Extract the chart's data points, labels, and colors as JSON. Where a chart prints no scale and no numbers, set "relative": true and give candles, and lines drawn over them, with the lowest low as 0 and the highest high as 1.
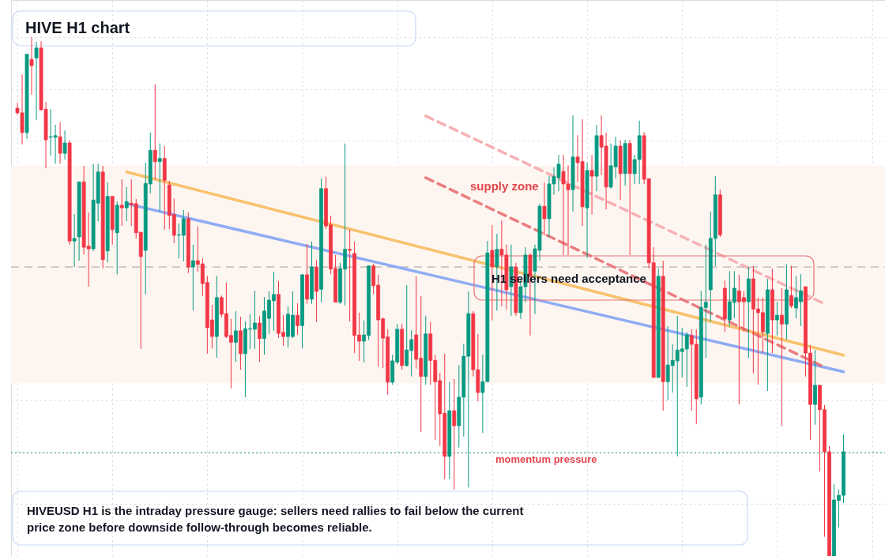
{
  "chart_data": {
    "type": "candlestick",
    "title": "HIVE H1 chart",
    "relative": true,
    "grid": true,
    "categories": [
      null,
      null,
      null,
      null,
      null,
      null,
      null,
      null,
      null,
      null,
      null,
      null,
      null,
      null,
      null,
      null,
      null,
      null,
      null,
      null,
      null,
      null,
      null,
      null,
      null,
      null,
      null,
      null,
      null,
      null,
      null,
      null,
      null,
      null,
      null,
      null,
      null,
      null,
      null,
      null,
      null,
      null,
      null,
      null,
      null,
      null,
      null,
      null,
      null,
      null,
      null,
      null,
      null,
      null,
      null,
      null,
      null,
      null,
      null,
      null,
      null,
      null,
      null,
      null,
      null,
      null,
      null,
      null,
      null,
      null,
      null,
      null,
      null,
      null,
      null,
      null,
      null,
      null,
      null,
      null,
      null,
      null,
      null,
      null,
      null,
      null,
      null,
      null,
      null,
      null,
      null,
      null,
      null,
      null,
      null,
      null,
      null,
      null,
      null,
      null,
      null,
      null,
      null,
      null,
      null,
      null,
      null,
      null,
      null,
      null,
      null,
      null,
      null,
      null,
      null,
      null,
      null,
      null,
      null,
      null,
      null,
      null,
      null,
      null,
      null,
      null,
      null,
      null,
      null,
      null,
      null,
      null,
      null,
      null,
      null,
      null,
      null,
      null,
      null,
      null,
      null,
      null,
      null,
      null,
      null,
      null,
      null,
      null,
      null,
      null,
      null,
      null,
      null,
      null,
      null,
      null,
      null,
      null,
      null,
      null,
      null,
      null,
      null,
      null,
      null,
      null,
      null,
      null,
      null,
      null,
      null,
      null,
      null,
      null,
      null
    ],
    "ohlc": [
      [
        0.863,
        0.874,
        0.851,
        0.854
      ],
      [
        0.854,
        0.928,
        0.793,
        0.816
      ],
      [
        0.816,
        0.967,
        0.804,
        0.967
      ],
      [
        0.957,
        1.0,
        0.889,
        0.945
      ],
      [
        0.96,
        0.991,
        0.84,
        0.979
      ],
      [
        0.979,
        0.992,
        0.858,
        0.86
      ],
      [
        0.861,
        0.875,
        0.747,
        0.802
      ],
      [
        0.807,
        0.861,
        0.772,
        0.808
      ],
      [
        0.807,
        0.831,
        0.756,
        0.81
      ],
      [
        0.808,
        0.836,
        0.756,
        0.776
      ],
      [
        0.776,
        0.82,
        0.764,
        0.796
      ],
      [
        0.796,
        0.801,
        0.6,
        0.607
      ],
      [
        0.607,
        0.659,
        0.557,
        0.612
      ],
      [
        0.615,
        0.721,
        0.569,
        0.721
      ],
      [
        0.721,
        0.752,
        0.581,
        0.595
      ],
      [
        0.597,
        0.662,
        0.519,
        0.592
      ],
      [
        0.592,
        0.756,
        0.588,
        0.686
      ],
      [
        0.68,
        0.756,
        0.645,
        0.74
      ],
      [
        0.74,
        0.752,
        0.554,
        0.571
      ],
      [
        0.588,
        0.72,
        0.566,
        0.693
      ],
      [
        0.693,
        0.693,
        0.6,
        0.629
      ],
      [
        0.623,
        0.683,
        0.543,
        0.676
      ],
      [
        0.676,
        0.726,
        0.636,
        0.671
      ],
      [
        0.671,
        0.711,
        0.645,
        0.683
      ],
      [
        0.68,
        0.726,
        0.636,
        0.677
      ],
      [
        0.679,
        0.688,
        0.612,
        0.623
      ],
      [
        0.624,
        0.624,
        0.399,
        0.577
      ],
      [
        0.589,
        0.758,
        0.504,
        0.718
      ],
      [
        0.717,
        0.816,
        0.699,
        0.782
      ],
      [
        0.782,
        0.909,
        0.726,
        0.76
      ],
      [
        0.76,
        0.795,
        0.664,
        0.766
      ],
      [
        0.766,
        0.79,
        0.629,
        0.724
      ],
      [
        0.715,
        0.723,
        0.63,
        0.656
      ],
      [
        0.658,
        0.689,
        0.603,
        0.618
      ],
      [
        0.618,
        0.641,
        0.574,
        0.619
      ],
      [
        0.618,
        0.667,
        0.568,
        0.65
      ],
      [
        0.65,
        0.662,
        0.545,
        0.557
      ],
      [
        0.557,
        0.6,
        0.473,
        0.569
      ],
      [
        0.569,
        0.635,
        0.548,
        0.562
      ],
      [
        0.563,
        0.574,
        0.501,
        0.525
      ],
      [
        0.527,
        0.54,
        0.39,
        0.44
      ],
      [
        0.455,
        0.484,
        0.4,
        0.423
      ],
      [
        0.423,
        0.54,
        0.382,
        0.498
      ],
      [
        0.498,
        0.502,
        0.46,
        0.466
      ],
      [
        0.467,
        0.527,
        0.42,
        0.423
      ],
      [
        0.425,
        0.457,
        0.323,
        0.412
      ],
      [
        0.412,
        0.472,
        0.374,
        0.434
      ],
      [
        0.434,
        0.461,
        0.359,
        0.39
      ],
      [
        0.39,
        0.452,
        0.306,
        0.438
      ],
      [
        0.437,
        0.466,
        0.399,
        0.438
      ],
      [
        0.437,
        0.511,
        0.399,
        0.449
      ],
      [
        0.449,
        0.463,
        0.374,
        0.419
      ],
      [
        0.419,
        0.499,
        0.388,
        0.472
      ],
      [
        0.458,
        0.51,
        0.428,
        0.493
      ],
      [
        0.492,
        0.548,
        0.434,
        0.504
      ],
      [
        0.504,
        0.53,
        0.42,
        0.429
      ],
      [
        0.431,
        0.464,
        0.405,
        0.423
      ],
      [
        0.423,
        0.481,
        0.402,
        0.466
      ],
      [
        0.423,
        0.51,
        0.42,
        0.464
      ],
      [
        0.464,
        0.487,
        0.426,
        0.444
      ],
      [
        0.444,
        0.543,
        0.4,
        0.542
      ],
      [
        0.542,
        0.601,
        0.486,
        0.495
      ],
      [
        0.495,
        0.606,
        0.486,
        0.557
      ],
      [
        0.557,
        0.571,
        0.451,
        0.51
      ],
      [
        0.514,
        0.728,
        0.489,
        0.708
      ],
      [
        0.708,
        0.731,
        0.63,
        0.636
      ],
      [
        0.638,
        0.656,
        0.543,
        0.553
      ],
      [
        0.554,
        0.58,
        0.489,
        0.489
      ],
      [
        0.489,
        0.565,
        0.486,
        0.554
      ],
      [
        0.553,
        0.795,
        0.483,
        0.591
      ],
      [
        0.591,
        0.629,
        0.452,
        0.589
      ],
      [
        0.583,
        0.606,
        0.391,
        0.425
      ],
      [
        0.426,
        0.469,
        0.376,
        0.414
      ],
      [
        0.414,
        0.454,
        0.373,
        0.426
      ],
      [
        0.425,
        0.56,
        0.416,
        0.559
      ],
      [
        0.559,
        0.563,
        0.505,
        0.521
      ],
      [
        0.522,
        0.542,
        0.365,
        0.455
      ],
      [
        0.457,
        0.46,
        0.362,
        0.42
      ],
      [
        0.422,
        0.437,
        0.311,
        0.335
      ],
      [
        0.335,
        0.388,
        0.33,
        0.376
      ],
      [
        0.374,
        0.447,
        0.37,
        0.437
      ],
      [
        0.437,
        0.447,
        0.359,
        0.367
      ],
      [
        0.367,
        0.522,
        0.365,
        0.397
      ],
      [
        0.396,
        0.435,
        0.346,
        0.417
      ],
      [
        0.426,
        0.539,
        0.361,
        0.379
      ],
      [
        0.381,
        0.501,
        0.239,
        0.346
      ],
      [
        0.346,
        0.463,
        0.33,
        0.428
      ],
      [
        0.428,
        0.451,
        0.33,
        0.377
      ],
      [
        0.377,
        0.388,
        0.224,
        0.336
      ],
      [
        0.338,
        0.353,
        0.212,
        0.274
      ],
      [
        0.275,
        0.39,
        0.148,
        0.192
      ],
      [
        0.192,
        0.335,
        0.148,
        0.28
      ],
      [
        0.28,
        0.341,
        0.128,
        0.251
      ],
      [
        0.251,
        0.368,
        0.209,
        0.306
      ],
      [
        0.306,
        0.409,
        0.23,
        0.385
      ],
      [
        0.385,
        0.51,
        0.132,
        0.467
      ],
      [
        0.467,
        0.472,
        0.346,
        0.359
      ],
      [
        0.359,
        0.428,
        0.298,
        0.315
      ],
      [
        0.315,
        0.388,
        0.237,
        0.336
      ],
      [
        0.336,
        0.607,
        0.336,
        0.584
      ],
      [
        0.589,
        0.638,
        0.454,
        0.557
      ],
      [
        0.557,
        0.621,
        0.473,
        0.591
      ],
      [
        0.591,
        0.647,
        0.481,
        0.58
      ],
      [
        0.58,
        0.6,
        0.475,
        0.513
      ],
      [
        0.519,
        0.6,
        0.463,
        0.557
      ],
      [
        0.557,
        0.565,
        0.463,
        0.469
      ],
      [
        0.469,
        0.534,
        0.457,
        0.519
      ],
      [
        0.519,
        0.595,
        0.489,
        0.58
      ],
      [
        0.58,
        0.584,
        0.425,
        0.539
      ],
      [
        0.549,
        0.6,
        0.466,
        0.592
      ],
      [
        0.589,
        0.679,
        0.569,
        0.674
      ],
      [
        0.674,
        0.72,
        0.618,
        0.65
      ],
      [
        0.65,
        0.732,
        0.615,
        0.717
      ],
      [
        0.717,
        0.749,
        0.696,
        0.731
      ],
      [
        0.729,
        0.773,
        0.703,
        0.755
      ],
      [
        0.741,
        0.773,
        0.58,
        0.717
      ],
      [
        0.717,
        0.753,
        0.58,
        0.706
      ],
      [
        0.706,
        0.849,
        0.664,
        0.769
      ],
      [
        0.769,
        0.811,
        0.721,
        0.758
      ],
      [
        0.76,
        0.842,
        0.636,
        0.673
      ],
      [
        0.671,
        0.758,
        0.574,
        0.743
      ],
      [
        0.743,
        0.773,
        0.658,
        0.732
      ],
      [
        0.732,
        0.831,
        0.703,
        0.81
      ],
      [
        0.81,
        0.849,
        0.734,
        0.788
      ],
      [
        0.79,
        0.816,
        0.668,
        0.711
      ],
      [
        0.711,
        0.795,
        0.708,
        0.752
      ],
      [
        0.75,
        0.808,
        0.728,
        0.79
      ],
      [
        0.79,
        0.801,
        0.686,
        0.737
      ],
      [
        0.737,
        0.802,
        0.714,
        0.795
      ],
      [
        0.795,
        0.802,
        0.58,
        0.737
      ],
      [
        0.737,
        0.773,
        0.717,
        0.764
      ],
      [
        0.764,
        0.839,
        0.717,
        0.81
      ],
      [
        0.81,
        0.817,
        0.717,
        0.726
      ],
      [
        0.727,
        0.727,
        0.554,
        0.565
      ],
      [
        0.565,
        0.595,
        0.344,
        0.344
      ],
      [
        0.344,
        0.554,
        0.344,
        0.539
      ],
      [
        0.539,
        0.569,
        0.28,
        0.336
      ],
      [
        0.336,
        0.443,
        0.3,
        0.368
      ],
      [
        0.367,
        0.408,
        0.315,
        0.377
      ],
      [
        0.376,
        0.463,
        0.192,
        0.397
      ],
      [
        0.394,
        0.44,
        0.344,
        0.399
      ],
      [
        0.399,
        0.431,
        0.326,
        0.426
      ],
      [
        0.425,
        0.437,
        0.28,
        0.408
      ],
      [
        0.408,
        0.437,
        0.254,
        0.303
      ],
      [
        0.306,
        0.511,
        0.292,
        0.479
      ],
      [
        0.479,
        0.6,
        0.382,
        0.489
      ],
      [
        0.513,
        0.664,
        0.452,
        0.612
      ],
      [
        0.612,
        0.732,
        0.559,
        0.696
      ],
      [
        0.696,
        0.706,
        0.615,
        0.619
      ],
      [
        0.516,
        0.531,
        0.432,
        0.457
      ],
      [
        0.455,
        0.549,
        0.443,
        0.49
      ],
      [
        0.489,
        0.549,
        0.458,
        0.516
      ],
      [
        0.511,
        0.542,
        0.292,
        0.49
      ],
      [
        0.498,
        0.511,
        0.432,
        0.49
      ],
      [
        0.49,
        0.557,
        0.382,
        0.534
      ],
      [
        0.534,
        0.559,
        0.352,
        0.476
      ],
      [
        0.476,
        0.498,
        0.33,
        0.469
      ],
      [
        0.469,
        0.498,
        0.391,
        0.432
      ],
      [
        0.429,
        0.534,
        0.318,
        0.513
      ],
      [
        0.513,
        0.554,
        0.391,
        0.455
      ],
      [
        0.455,
        0.49,
        0.425,
        0.464
      ],
      [
        0.464,
        0.516,
        0.25,
        0.447
      ],
      [
        0.447,
        0.562,
        0.417,
        0.513
      ],
      [
        0.502,
        0.559,
        0.478,
        0.482
      ],
      [
        0.478,
        0.539,
        0.458,
        0.498
      ],
      [
        0.49,
        0.543,
        0.443,
        0.511
      ],
      [
        0.519,
        0.519,
        0.346,
        0.391
      ],
      [
        0.391,
        0.406,
        0.224,
        0.292
      ],
      [
        0.292,
        0.397,
        0.253,
        0.329
      ],
      [
        0.329,
        0.33,
        0.163,
        0.282
      ],
      [
        0.282,
        0.291,
        0.037,
        0.201
      ],
      [
        0.201,
        0.212,
        0.0,
        0.0
      ],
      [
        0.0,
        0.139,
        0.0,
        0.108
      ],
      [
        0.107,
        0.128,
        0.055,
        0.117
      ],
      [
        0.117,
        0.234,
        0.102,
        0.201
      ]
    ],
    "series": [
      {
        "type": "line",
        "color": "#f7b955",
        "line_style": "solid",
        "values": [
          null,
          null,
          null,
          null,
          null,
          null,
          null,
          null,
          null,
          null,
          null,
          null,
          null,
          null,
          null,
          null,
          null,
          null,
          null,
          null,
          null,
          null,
          null,
          0.74,
          null,
          null,
          null,
          null,
          null,
          null,
          null,
          null,
          null,
          null,
          null,
          null,
          null,
          null,
          null,
          null,
          null,
          null,
          null,
          null,
          null,
          null,
          null,
          null,
          null,
          null,
          null,
          null,
          null,
          null,
          null,
          null,
          null,
          null,
          null,
          null,
          null,
          null,
          null,
          null,
          null,
          null,
          null,
          null,
          null,
          null,
          null,
          null,
          null,
          null,
          null,
          null,
          null,
          null,
          null,
          null,
          null,
          null,
          null,
          null,
          null,
          null,
          null,
          null,
          null,
          null,
          null,
          null,
          null,
          null,
          null,
          null,
          null,
          null,
          null,
          null,
          null,
          null,
          null,
          null,
          null,
          null,
          null,
          null,
          null,
          null,
          null,
          null,
          null,
          null,
          null,
          null,
          null,
          null,
          null,
          null,
          null,
          null,
          null,
          null,
          null,
          null,
          null,
          null,
          null,
          null,
          null,
          null,
          null,
          null,
          null,
          null,
          null,
          null,
          null,
          null,
          null,
          null,
          null,
          null,
          null,
          null,
          null,
          null,
          null,
          null,
          null,
          null,
          null,
          null,
          null,
          null,
          null,
          null,
          null,
          null,
          null,
          null,
          null,
          null,
          null,
          null,
          null,
          null,
          null,
          null,
          null,
          null,
          null,
          null,
          0.387
        ]
      },
      {
        "type": "line",
        "color": "#7b9ff5",
        "line_style": "solid",
        "values": [
          null,
          null,
          null,
          null,
          null,
          null,
          null,
          null,
          null,
          null,
          null,
          null,
          null,
          null,
          null,
          null,
          null,
          null,
          null,
          null,
          null,
          null,
          null,
          0.679,
          null,
          null,
          null,
          null,
          null,
          null,
          null,
          null,
          null,
          null,
          null,
          null,
          null,
          null,
          null,
          null,
          null,
          null,
          null,
          null,
          null,
          null,
          null,
          null,
          null,
          null,
          null,
          null,
          null,
          null,
          null,
          null,
          null,
          null,
          null,
          null,
          null,
          null,
          null,
          null,
          null,
          null,
          null,
          null,
          null,
          null,
          null,
          null,
          null,
          null,
          null,
          null,
          null,
          null,
          null,
          null,
          null,
          null,
          null,
          null,
          null,
          null,
          null,
          null,
          null,
          null,
          null,
          null,
          null,
          null,
          null,
          null,
          null,
          null,
          null,
          null,
          null,
          null,
          null,
          null,
          null,
          null,
          null,
          null,
          null,
          null,
          null,
          null,
          null,
          null,
          null,
          null,
          null,
          null,
          null,
          null,
          null,
          null,
          null,
          null,
          null,
          null,
          null,
          null,
          null,
          null,
          null,
          null,
          null,
          null,
          null,
          null,
          null,
          null,
          null,
          null,
          null,
          null,
          null,
          null,
          null,
          null,
          null,
          null,
          null,
          null,
          null,
          null,
          null,
          null,
          null,
          null,
          null,
          null,
          null,
          null,
          null,
          null,
          null,
          null,
          null,
          null,
          null,
          null,
          null,
          null,
          null,
          null,
          null,
          null,
          0.355
        ]
      },
      {
        "type": "line",
        "color": "#f4a3a8",
        "line_style": "dashed",
        "values": [
          null,
          null,
          null,
          null,
          null,
          null,
          null,
          null,
          null,
          null,
          null,
          null,
          null,
          null,
          null,
          null,
          null,
          null,
          null,
          null,
          null,
          null,
          null,
          null,
          null,
          null,
          null,
          null,
          null,
          null,
          null,
          null,
          null,
          null,
          null,
          null,
          null,
          null,
          null,
          null,
          null,
          null,
          null,
          null,
          null,
          null,
          null,
          null,
          null,
          null,
          null,
          null,
          null,
          null,
          null,
          null,
          null,
          null,
          null,
          null,
          null,
          null,
          null,
          null,
          null,
          null,
          null,
          null,
          null,
          null,
          null,
          null,
          null,
          null,
          null,
          null,
          null,
          null,
          null,
          null,
          null,
          null,
          null,
          null,
          null,
          null,
          0.848,
          null,
          null,
          null,
          null,
          null,
          null,
          null,
          null,
          null,
          null,
          null,
          null,
          null,
          null,
          null,
          null,
          null,
          null,
          null,
          null,
          null,
          null,
          null,
          null,
          null,
          null,
          null,
          null,
          null,
          null,
          null,
          null,
          null,
          null,
          null,
          null,
          null,
          null,
          null,
          null,
          null,
          null,
          null,
          null,
          null,
          null,
          null,
          null,
          null,
          null,
          null,
          null,
          null,
          null,
          null,
          null,
          null,
          null,
          null,
          null,
          null,
          null,
          null,
          null,
          null,
          null,
          null,
          null,
          null,
          null,
          null,
          null,
          null,
          null,
          null,
          null,
          null,
          null,
          null,
          null,
          null,
          null,
          null,
          0.486,
          null,
          null,
          null,
          null
        ]
      },
      {
        "type": "line",
        "color": "#e8676c",
        "line_style": "dashed",
        "values": [
          null,
          null,
          null,
          null,
          null,
          null,
          null,
          null,
          null,
          null,
          null,
          null,
          null,
          null,
          null,
          null,
          null,
          null,
          null,
          null,
          null,
          null,
          null,
          null,
          null,
          null,
          null,
          null,
          null,
          null,
          null,
          null,
          null,
          null,
          null,
          null,
          null,
          null,
          null,
          null,
          null,
          null,
          null,
          null,
          null,
          null,
          null,
          null,
          null,
          null,
          null,
          null,
          null,
          null,
          null,
          null,
          null,
          null,
          null,
          null,
          null,
          null,
          null,
          null,
          null,
          null,
          null,
          null,
          null,
          null,
          null,
          null,
          null,
          null,
          null,
          null,
          null,
          null,
          null,
          null,
          null,
          null,
          null,
          null,
          null,
          null,
          0.729,
          null,
          null,
          null,
          null,
          null,
          null,
          null,
          null,
          null,
          null,
          null,
          null,
          null,
          null,
          null,
          null,
          null,
          null,
          null,
          null,
          null,
          null,
          null,
          null,
          null,
          null,
          null,
          null,
          null,
          null,
          null,
          null,
          null,
          null,
          null,
          null,
          null,
          null,
          null,
          null,
          null,
          null,
          null,
          null,
          null,
          null,
          null,
          null,
          null,
          null,
          null,
          null,
          null,
          null,
          null,
          null,
          null,
          null,
          null,
          null,
          null,
          null,
          null,
          null,
          null,
          null,
          null,
          null,
          null,
          null,
          null,
          null,
          null,
          null,
          null,
          null,
          null,
          null,
          null,
          null,
          null,
          null,
          null,
          0.364,
          null,
          null,
          null,
          null
        ]
      }
    ],
    "ref_lines": [
      {
        "axis": "y",
        "value": 0.557,
        "color": "#9e9e9e",
        "line_style": "dashed"
      },
      {
        "axis": "y",
        "value": 0.199,
        "color": "#089981",
        "line_style": "dotted"
      }
    ],
    "bands": [
      {
        "axis": "y",
        "from": 0.333,
        "to": 0.752,
        "label": "supply zone",
        "color": "#fdf5f0"
      }
    ],
    "annotations": [
      "H1 sellers need acceptance",
      "momentum pressure",
      "HIVEUSD H1 is the intraday pressure gauge: sellers need rallies to fail below the current\nprice zone before downside follow-through becomes reliable."
    ]
  }
}
